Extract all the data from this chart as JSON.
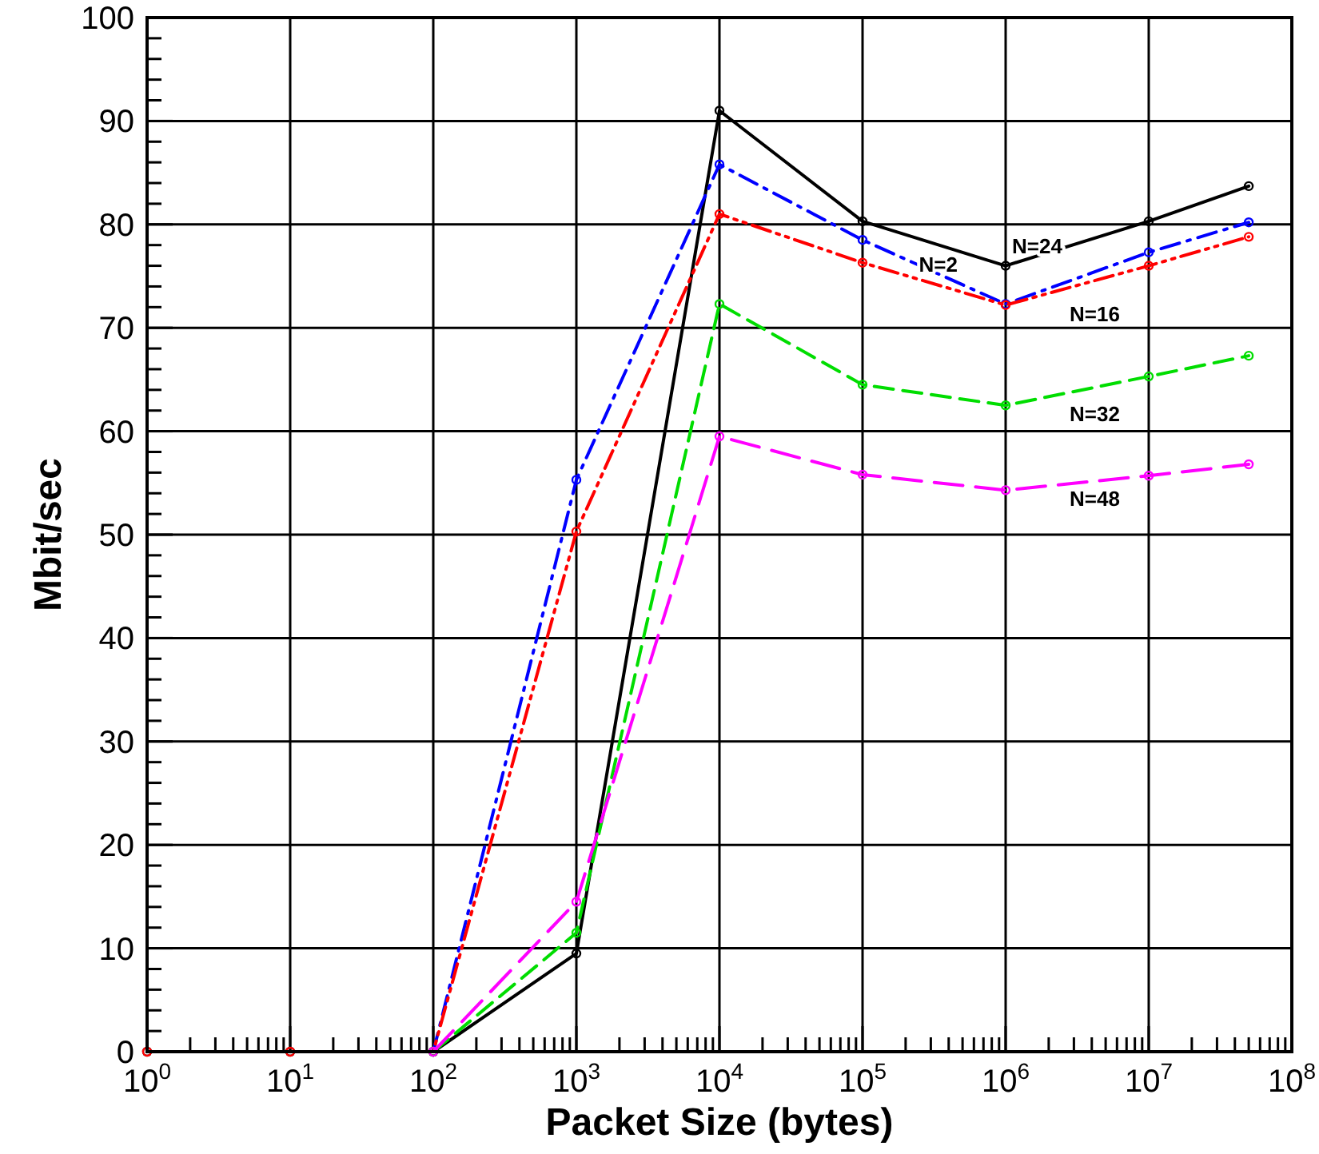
{
  "chart_data": {
    "type": "line",
    "xlabel": "Packet Size (bytes)",
    "ylabel": "Mbit/sec",
    "log": "x",
    "grid": true,
    "marker": "circle",
    "legend": false,
    "xlim": [
      1,
      100000000
    ],
    "ylim": [
      0,
      100
    ],
    "xticks": [
      {
        "value": 1,
        "label": "10$^{0}$"
      },
      {
        "value": 2,
        "label": null
      },
      {
        "value": 3,
        "label": null
      },
      {
        "value": 4,
        "label": null
      },
      {
        "value": 5,
        "label": null
      },
      {
        "value": 6,
        "label": null
      },
      {
        "value": 7,
        "label": null
      },
      {
        "value": 8,
        "label": null
      },
      {
        "value": 9,
        "label": null
      },
      {
        "value": 10,
        "label": "10$^{1}$"
      },
      {
        "value": 20,
        "label": null
      },
      {
        "value": 30,
        "label": null
      },
      {
        "value": 40,
        "label": null
      },
      {
        "value": 50,
        "label": null
      },
      {
        "value": 60,
        "label": null
      },
      {
        "value": 70,
        "label": null
      },
      {
        "value": 80,
        "label": null
      },
      {
        "value": 90,
        "label": null
      },
      {
        "value": 100,
        "label": "10$^{2}$"
      },
      {
        "value": 200,
        "label": null
      },
      {
        "value": 300,
        "label": null
      },
      {
        "value": 400,
        "label": null
      },
      {
        "value": 500,
        "label": null
      },
      {
        "value": 600,
        "label": null
      },
      {
        "value": 700,
        "label": null
      },
      {
        "value": 800,
        "label": null
      },
      {
        "value": 900,
        "label": null
      },
      {
        "value": 1000,
        "label": "10$^{3}$"
      },
      {
        "value": 2000,
        "label": null
      },
      {
        "value": 3000,
        "label": null
      },
      {
        "value": 4000,
        "label": null
      },
      {
        "value": 5000,
        "label": null
      },
      {
        "value": 6000,
        "label": null
      },
      {
        "value": 7000,
        "label": null
      },
      {
        "value": 8000,
        "label": null
      },
      {
        "value": 9000,
        "label": null
      },
      {
        "value": 10000,
        "label": "10$^{4}$"
      },
      {
        "value": 20000,
        "label": null
      },
      {
        "value": 30000,
        "label": null
      },
      {
        "value": 40000,
        "label": null
      },
      {
        "value": 50000,
        "label": null
      },
      {
        "value": 60000,
        "label": null
      },
      {
        "value": 70000,
        "label": null
      },
      {
        "value": 80000,
        "label": null
      },
      {
        "value": 90000,
        "label": null
      },
      {
        "value": 100000,
        "label": "10$^{5}$"
      },
      {
        "value": 200000,
        "label": null
      },
      {
        "value": 300000,
        "label": null
      },
      {
        "value": 400000,
        "label": null
      },
      {
        "value": 500000,
        "label": null
      },
      {
        "value": 600000,
        "label": null
      },
      {
        "value": 700000,
        "label": null
      },
      {
        "value": 800000,
        "label": null
      },
      {
        "value": 900000,
        "label": null
      },
      {
        "value": 1000000,
        "label": "10$^{6}$"
      },
      {
        "value": 2000000,
        "label": null
      },
      {
        "value": 3000000,
        "label": null
      },
      {
        "value": 4000000,
        "label": null
      },
      {
        "value": 5000000,
        "label": null
      },
      {
        "value": 6000000,
        "label": null
      },
      {
        "value": 7000000,
        "label": null
      },
      {
        "value": 8000000,
        "label": null
      },
      {
        "value": 9000000,
        "label": null
      },
      {
        "value": 10000000,
        "label": "10$^{7}$"
      },
      {
        "value": 20000000,
        "label": null
      },
      {
        "value": 30000000,
        "label": null
      },
      {
        "value": 40000000,
        "label": null
      },
      {
        "value": 50000000,
        "label": null
      },
      {
        "value": 60000000,
        "label": null
      },
      {
        "value": 70000000,
        "label": null
      },
      {
        "value": 80000000,
        "label": null
      },
      {
        "value": 90000000,
        "label": null
      },
      {
        "value": 100000000,
        "label": "10$^{8}$"
      }
    ],
    "yticks": [
      0,
      {
        "value": 2,
        "label": null
      },
      {
        "value": 4,
        "label": null
      },
      {
        "value": 6,
        "label": null
      },
      {
        "value": 8,
        "label": null
      },
      10,
      {
        "value": 12,
        "label": null
      },
      {
        "value": 14,
        "label": null
      },
      {
        "value": 16,
        "label": null
      },
      {
        "value": 18,
        "label": null
      },
      20,
      {
        "value": 22,
        "label": null
      },
      {
        "value": 24,
        "label": null
      },
      {
        "value": 26,
        "label": null
      },
      {
        "value": 28,
        "label": null
      },
      30,
      {
        "value": 32,
        "label": null
      },
      {
        "value": 34,
        "label": null
      },
      {
        "value": 36,
        "label": null
      },
      {
        "value": 38,
        "label": null
      },
      40,
      {
        "value": 42,
        "label": null
      },
      {
        "value": 44,
        "label": null
      },
      {
        "value": 46,
        "label": null
      },
      {
        "value": 48,
        "label": null
      },
      50,
      {
        "value": 52,
        "label": null
      },
      {
        "value": 54,
        "label": null
      },
      {
        "value": 56,
        "label": null
      },
      {
        "value": 58,
        "label": null
      },
      60,
      {
        "value": 62,
        "label": null
      },
      {
        "value": 64,
        "label": null
      },
      {
        "value": 66,
        "label": null
      },
      {
        "value": 68,
        "label": null
      },
      70,
      {
        "value": 72,
        "label": null
      },
      {
        "value": 74,
        "label": null
      },
      {
        "value": 76,
        "label": null
      },
      {
        "value": 78,
        "label": null
      },
      80,
      {
        "value": 82,
        "label": null
      },
      {
        "value": 84,
        "label": null
      },
      {
        "value": 86,
        "label": null
      },
      {
        "value": 88,
        "label": null
      },
      90,
      {
        "value": 92,
        "label": null
      },
      {
        "value": 94,
        "label": null
      },
      {
        "value": 96,
        "label": null
      },
      {
        "value": 98,
        "label": null
      },
      100
    ],
    "series": [
      {
        "name": "N=24",
        "color": "#000000",
        "line_style": "solid",
        "x": [
          1,
          10,
          100,
          1000,
          10000,
          100000,
          1000000,
          10000000,
          50000000
        ],
        "values": [
          0,
          0,
          0,
          9.5,
          91,
          80.3,
          76,
          80.3,
          83.7
        ]
      },
      {
        "name": "N=2",
        "color": "#0000ff",
        "line_style": "dashdot",
        "x": [
          100,
          1000,
          10000,
          100000,
          1000000,
          10000000,
          50000000
        ],
        "values": [
          0,
          55.3,
          85.8,
          78.5,
          72.3,
          77.3,
          80.2
        ]
      },
      {
        "name": "N=16",
        "color": "#ff0000",
        "line_style": "dashdotdot",
        "x": [
          1,
          10,
          100,
          1000,
          10000,
          100000,
          1000000,
          10000000,
          50000000
        ],
        "values": [
          0,
          0,
          0,
          50.3,
          81,
          76.3,
          72.2,
          76,
          78.8
        ]
      },
      {
        "name": "N=32",
        "color": "#00dd00",
        "line_style": "dashed",
        "x": [
          100,
          1000,
          10000,
          100000,
          1000000,
          10000000,
          50000000
        ],
        "values": [
          0,
          11.5,
          72.3,
          64.5,
          62.5,
          65.3,
          67.3
        ]
      },
      {
        "name": "N=48",
        "color": "#ff00ff",
        "line_style": "longdash",
        "x": [
          100,
          1000,
          10000,
          100000,
          1000000,
          10000000,
          50000000
        ],
        "values": [
          0,
          14.5,
          59.5,
          55.8,
          54.3,
          55.7,
          56.8
        ]
      }
    ]
  }
}
